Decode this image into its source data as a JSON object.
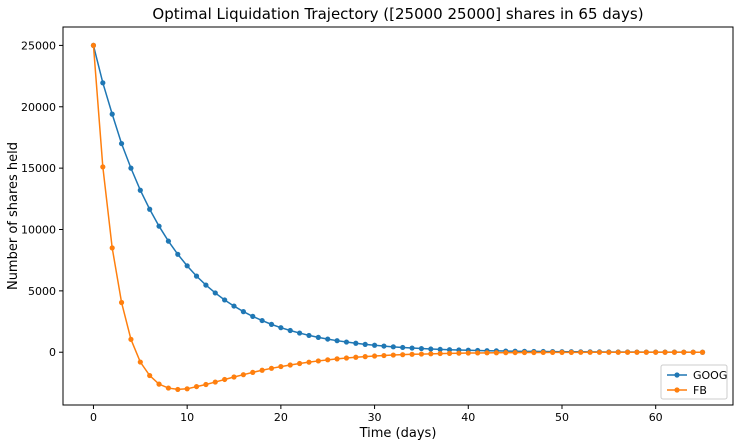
{
  "chart_data": {
    "type": "line",
    "title": "Optimal Liquidation Trajectory ([25000 25000] shares in 65 days)",
    "xlabel": "Time (days)",
    "ylabel": "Number of shares held",
    "xlim": [
      -3.25,
      68.25
    ],
    "ylim": [
      -4300,
      26500
    ],
    "xticks": [
      0,
      10,
      20,
      30,
      40,
      50,
      60
    ],
    "yticks": [
      0,
      5000,
      10000,
      15000,
      20000,
      25000
    ],
    "grid": false,
    "legend": "lower-right",
    "series": [
      {
        "name": "GOOG",
        "color": "#1f77b4",
        "marker": "circle",
        "x": [
          0,
          1,
          2,
          3,
          4,
          5,
          6,
          7,
          8,
          9,
          10,
          11,
          12,
          13,
          14,
          15,
          16,
          17,
          18,
          19,
          20,
          21,
          22,
          23,
          24,
          25,
          26,
          27,
          28,
          29,
          30,
          31,
          32,
          33,
          34,
          35,
          36,
          37,
          38,
          39,
          40,
          41,
          42,
          43,
          44,
          45,
          46,
          47,
          48,
          49,
          50,
          51,
          52,
          53,
          54,
          55,
          56,
          57,
          58,
          59,
          60,
          61,
          62,
          63,
          64,
          65
        ],
        "values": [
          25000,
          21950,
          19400,
          17000,
          15000,
          13200,
          11650,
          10270,
          9050,
          7980,
          7040,
          6200,
          5470,
          4830,
          4260,
          3760,
          3310,
          2920,
          2580,
          2270,
          2000,
          1770,
          1560,
          1370,
          1210,
          1070,
          940,
          830,
          730,
          640,
          570,
          500,
          440,
          390,
          340,
          300,
          260,
          230,
          200,
          180,
          160,
          140,
          120,
          110,
          95,
          84,
          74,
          65,
          57,
          50,
          44,
          39,
          34,
          30,
          26,
          23,
          20,
          17,
          15,
          13,
          11,
          9,
          7,
          5,
          3,
          0
        ]
      },
      {
        "name": "FB",
        "color": "#ff7f0e",
        "marker": "circle",
        "x": [
          0,
          1,
          2,
          3,
          4,
          5,
          6,
          7,
          8,
          9,
          10,
          11,
          12,
          13,
          14,
          15,
          16,
          17,
          18,
          19,
          20,
          21,
          22,
          23,
          24,
          25,
          26,
          27,
          28,
          29,
          30,
          31,
          32,
          33,
          34,
          35,
          36,
          37,
          38,
          39,
          40,
          41,
          42,
          43,
          44,
          45,
          46,
          47,
          48,
          49,
          50,
          51,
          52,
          53,
          54,
          55,
          56,
          57,
          58,
          59,
          60,
          61,
          62,
          63,
          64,
          65
        ],
        "values": [
          25000,
          15100,
          8500,
          4050,
          1050,
          -800,
          -1900,
          -2600,
          -2920,
          -3030,
          -2980,
          -2800,
          -2630,
          -2430,
          -2220,
          -2020,
          -1830,
          -1640,
          -1470,
          -1310,
          -1170,
          -1040,
          -920,
          -810,
          -710,
          -620,
          -540,
          -470,
          -410,
          -360,
          -310,
          -270,
          -230,
          -200,
          -170,
          -150,
          -130,
          -110,
          -95,
          -80,
          -68,
          -58,
          -49,
          -41,
          -35,
          -30,
          -25,
          -21,
          -18,
          -15,
          -12,
          -10,
          -8,
          -7,
          -6,
          -5,
          -4,
          -3,
          -2,
          -2,
          -1,
          -1,
          -1,
          0,
          0,
          0
        ]
      }
    ]
  }
}
